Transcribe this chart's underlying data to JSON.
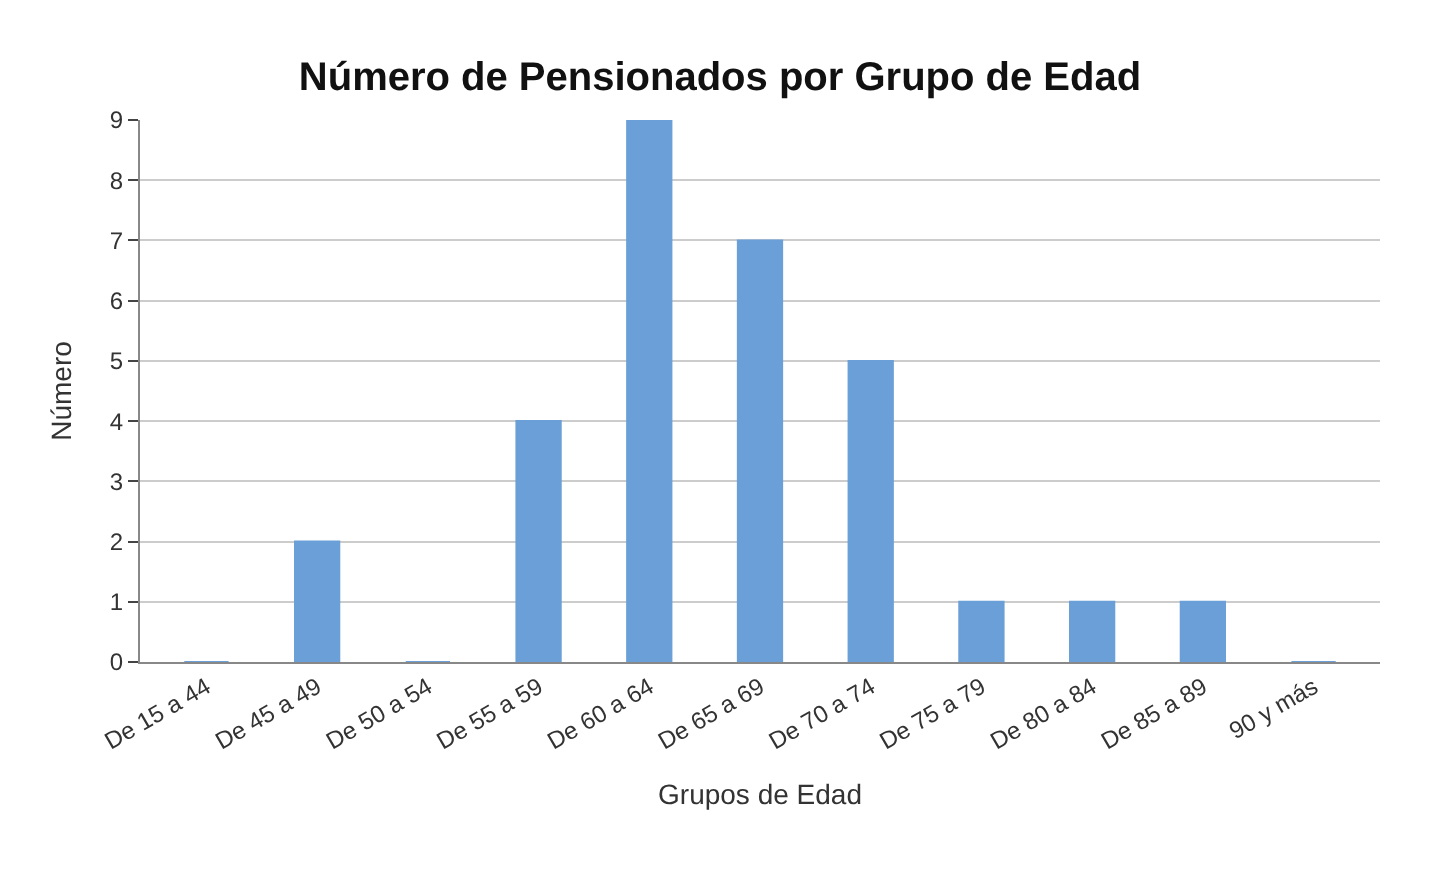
{
  "chart_data": {
    "type": "bar",
    "title": "Número de Pensionados por Grupo de Edad",
    "xlabel": "Grupos de Edad",
    "ylabel": "Número",
    "categories": [
      "De 15 a 44",
      "De 45 a 49",
      "De 50 a 54",
      "De 55 a 59",
      "De 60 a 64",
      "De 65 a 69",
      "De 70 a 74",
      "De 75 a 79",
      "De 80 a 84",
      "De 85 a 89",
      "90 y más"
    ],
    "values": [
      0,
      2,
      0,
      4,
      9,
      7,
      5,
      1,
      1,
      1,
      0
    ],
    "color": "#6a9fd8",
    "ylim": [
      0,
      9
    ],
    "yticks": [
      0,
      1,
      2,
      3,
      4,
      5,
      6,
      7,
      8,
      9
    ],
    "grid": "y"
  }
}
